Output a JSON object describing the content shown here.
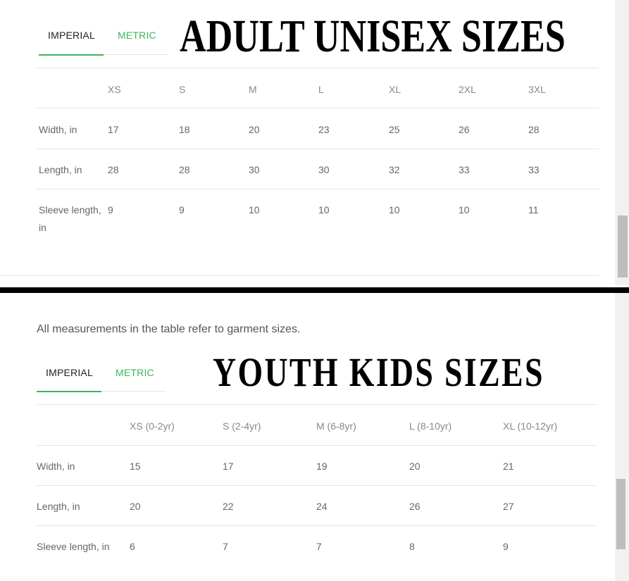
{
  "adult": {
    "title": "ADULT UNISEX SIZES",
    "tabs": [
      {
        "label": "IMPERIAL",
        "active": true
      },
      {
        "label": "METRIC",
        "active": false
      }
    ],
    "columns": [
      "XS",
      "S",
      "M",
      "L",
      "XL",
      "2XL",
      "3XL"
    ],
    "rows": [
      {
        "label": "Width, in",
        "values": [
          "17",
          "18",
          "20",
          "23",
          "25",
          "26",
          "28"
        ]
      },
      {
        "label": "Length, in",
        "values": [
          "28",
          "28",
          "30",
          "30",
          "32",
          "33",
          "33"
        ]
      },
      {
        "label": "Sleeve length, in",
        "values": [
          "9",
          "9",
          "10",
          "10",
          "10",
          "10",
          "11"
        ]
      }
    ]
  },
  "youth": {
    "note": "All measurements in the table refer to garment sizes.",
    "title": "YOUTH KIDS SIZES",
    "tabs": [
      {
        "label": "IMPERIAL",
        "active": true
      },
      {
        "label": "METRIC",
        "active": false
      }
    ],
    "columns": [
      "XS (0-2yr)",
      "S (2-4yr)",
      "M (6-8yr)",
      "L (8-10yr)",
      "XL (10-12yr)"
    ],
    "rows": [
      {
        "label": "Width, in",
        "values": [
          "15",
          "17",
          "19",
          "20",
          "21"
        ]
      },
      {
        "label": "Length, in",
        "values": [
          "20",
          "22",
          "24",
          "26",
          "27"
        ]
      },
      {
        "label": "Sleeve length, in",
        "values": [
          "6",
          "7",
          "7",
          "8",
          "9"
        ]
      }
    ]
  },
  "colors": {
    "accent": "#3cb55c",
    "divider": "#000000"
  }
}
